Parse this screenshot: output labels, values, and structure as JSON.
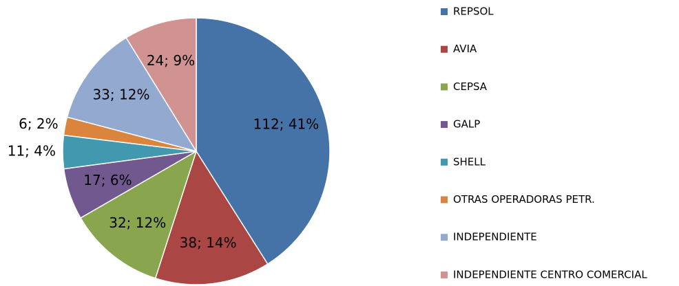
{
  "chart_data": {
    "type": "pie",
    "categories": [
      "REPSOL",
      "AVIA",
      "CEPSA",
      "GALP",
      "SHELL",
      "OTRAS OPERADORAS PETR.",
      "INDEPENDIENTE",
      "INDEPENDIENTE CENTRO COMERCIAL"
    ],
    "values": [
      112,
      38,
      32,
      17,
      11,
      6,
      33,
      24
    ],
    "value_labels": [
      "112; 41%",
      "38; 14%",
      "32; 12%",
      "17; 6%",
      "11; 4%",
      "6; 2%",
      "33; 12%",
      "24; 9%"
    ],
    "colors": [
      "#4572a7",
      "#aa4643",
      "#89a54e",
      "#71588f",
      "#4198af",
      "#db843d",
      "#93a9cf",
      "#d19392"
    ],
    "legend": "right"
  }
}
